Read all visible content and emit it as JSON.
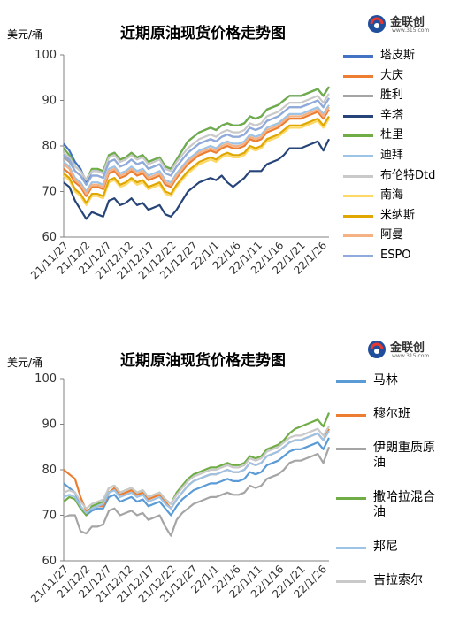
{
  "chart_data": [
    {
      "type": "line",
      "title": "近期原油现货价格走势图",
      "ylabel": "美元/桶",
      "ylim": [
        60,
        100
      ],
      "yticks": [
        60,
        70,
        80,
        90,
        100
      ],
      "x_tick_labels": [
        "21/11/27",
        "21/12/2",
        "21/12/7",
        "21/12/12",
        "21/12/17",
        "21/12/22",
        "21/12/27",
        "22/1/1",
        "22/1/6",
        "22/1/11",
        "22/1/16",
        "22/1/21",
        "22/1/26"
      ],
      "grid": false,
      "legend_position": "right",
      "logo": {
        "name": "金联创",
        "sub": "www.315.com"
      },
      "series": [
        {
          "name": "塔皮斯",
          "color": "#4472C4",
          "values": [
            80.5,
            79.0,
            76.5,
            75.0,
            72.0,
            74.5,
            74.5,
            74.0,
            78.0,
            78.5,
            77.0,
            77.5,
            78.5,
            77.5,
            78.0,
            76.5,
            77.0,
            77.5,
            75.5,
            75.0,
            77.0,
            79.0,
            81.0,
            82.0,
            83.0,
            83.5,
            84.0,
            83.5,
            84.5,
            85.0,
            84.5,
            84.5,
            85.0,
            86.5,
            86.0,
            86.5,
            88.0,
            88.5,
            89.0,
            90.0,
            91.0,
            91.0,
            91.0,
            91.5,
            92.0,
            92.5,
            91.0,
            93.0
          ]
        },
        {
          "name": "大庆",
          "color": "#ED7D31",
          "values": [
            75.0,
            74.0,
            72.0,
            71.0,
            69.0,
            71.0,
            71.0,
            70.5,
            74.0,
            74.5,
            73.0,
            73.5,
            74.5,
            73.5,
            74.0,
            72.5,
            73.0,
            73.5,
            71.5,
            71.0,
            73.0,
            74.5,
            76.0,
            77.0,
            78.0,
            78.5,
            79.0,
            78.5,
            79.5,
            80.0,
            79.5,
            79.5,
            80.0,
            81.5,
            81.0,
            81.5,
            83.0,
            83.5,
            84.0,
            85.0,
            86.0,
            86.0,
            86.0,
            86.5,
            87.0,
            87.5,
            86.0,
            88.0
          ]
        },
        {
          "name": "胜利",
          "color": "#A5A5A5",
          "values": [
            77.5,
            76.5,
            74.5,
            73.5,
            71.5,
            73.5,
            73.5,
            73.0,
            76.5,
            77.0,
            75.5,
            76.0,
            77.0,
            76.0,
            76.5,
            75.0,
            75.5,
            76.0,
            74.0,
            73.5,
            75.5,
            77.0,
            78.5,
            79.5,
            80.5,
            81.0,
            81.5,
            81.0,
            82.0,
            82.5,
            82.0,
            82.0,
            82.5,
            84.0,
            83.5,
            84.0,
            85.5,
            86.0,
            86.5,
            87.5,
            88.5,
            88.5,
            88.5,
            89.0,
            89.5,
            90.0,
            88.5,
            90.5
          ]
        },
        {
          "name": "辛塔",
          "color": "#264478",
          "values": [
            72.0,
            71.0,
            68.0,
            66.0,
            64.0,
            65.5,
            65.0,
            64.5,
            68.0,
            68.5,
            67.0,
            67.5,
            68.5,
            67.0,
            67.5,
            66.0,
            66.5,
            67.0,
            65.0,
            64.5,
            66.0,
            68.0,
            70.0,
            71.0,
            72.0,
            72.5,
            73.0,
            72.5,
            73.5,
            72.0,
            71.0,
            72.0,
            73.0,
            74.5,
            74.5,
            74.5,
            76.0,
            76.5,
            77.0,
            78.0,
            79.5,
            79.5,
            79.5,
            80.0,
            80.5,
            81.0,
            79.0,
            81.5
          ]
        },
        {
          "name": "杜里",
          "color": "#70AD47",
          "values": [
            79.5,
            78.0,
            75.5,
            74.5,
            72.5,
            75.0,
            75.0,
            74.5,
            78.0,
            78.5,
            77.0,
            77.5,
            78.5,
            77.5,
            78.0,
            76.5,
            77.0,
            77.5,
            75.5,
            75.0,
            77.0,
            79.0,
            81.0,
            82.0,
            83.0,
            83.5,
            84.0,
            83.5,
            84.5,
            85.0,
            84.5,
            84.5,
            85.0,
            86.5,
            86.0,
            86.5,
            88.0,
            88.5,
            89.0,
            90.0,
            91.0,
            91.0,
            91.0,
            91.5,
            92.0,
            92.5,
            91.0,
            93.0
          ]
        },
        {
          "name": "迪拜",
          "color": "#9DC3E6",
          "values": [
            76.5,
            75.5,
            73.0,
            72.0,
            70.0,
            72.0,
            72.0,
            71.5,
            75.0,
            75.5,
            74.0,
            74.5,
            75.5,
            74.5,
            75.0,
            73.5,
            74.0,
            74.5,
            72.5,
            72.0,
            74.0,
            75.5,
            77.0,
            78.0,
            79.0,
            79.5,
            80.0,
            79.5,
            80.5,
            81.0,
            80.5,
            80.5,
            81.0,
            82.5,
            82.0,
            82.5,
            84.0,
            84.5,
            85.0,
            86.0,
            87.0,
            87.0,
            87.0,
            87.5,
            88.0,
            88.5,
            87.0,
            89.0
          ]
        },
        {
          "name": "布伦特Dtd",
          "color": "#C9C9C9",
          "values": [
            78.5,
            77.5,
            75.5,
            74.5,
            72.5,
            74.5,
            74.5,
            74.0,
            77.5,
            78.0,
            76.5,
            77.0,
            78.0,
            77.0,
            77.5,
            76.0,
            76.5,
            77.0,
            75.0,
            74.5,
            76.5,
            78.0,
            79.5,
            80.5,
            81.5,
            82.0,
            82.5,
            82.0,
            83.0,
            83.5,
            83.0,
            83.0,
            83.5,
            85.0,
            84.5,
            85.0,
            86.5,
            87.0,
            87.5,
            88.5,
            89.5,
            89.5,
            89.5,
            90.0,
            90.5,
            91.0,
            89.5,
            91.5
          ]
        },
        {
          "name": "南海",
          "color": "#FFD966",
          "values": [
            73.5,
            72.5,
            70.0,
            69.0,
            67.0,
            69.0,
            69.0,
            68.5,
            72.0,
            72.5,
            71.0,
            71.5,
            72.5,
            71.5,
            72.0,
            70.5,
            71.0,
            71.5,
            69.5,
            69.0,
            71.0,
            72.5,
            74.0,
            75.0,
            76.0,
            76.5,
            77.0,
            76.5,
            77.5,
            78.0,
            77.5,
            77.5,
            78.0,
            79.5,
            79.0,
            79.5,
            81.0,
            81.5,
            82.0,
            83.0,
            84.0,
            84.0,
            84.0,
            84.5,
            85.0,
            85.5,
            84.0,
            86.0
          ]
        },
        {
          "name": "米纳斯",
          "color": "#DFA700",
          "values": [
            74.0,
            73.0,
            70.5,
            69.5,
            67.5,
            69.5,
            69.5,
            69.0,
            72.5,
            73.0,
            71.5,
            72.0,
            73.0,
            72.0,
            72.5,
            71.0,
            71.5,
            72.0,
            70.0,
            69.5,
            71.5,
            73.0,
            74.5,
            75.5,
            76.5,
            77.0,
            77.5,
            77.0,
            78.0,
            78.5,
            78.0,
            78.0,
            78.5,
            80.0,
            79.5,
            80.0,
            81.5,
            82.0,
            82.5,
            83.5,
            84.5,
            84.5,
            84.5,
            85.0,
            85.5,
            86.0,
            84.5,
            86.5
          ]
        },
        {
          "name": "阿曼",
          "color": "#F4B183",
          "values": [
            76.0,
            75.0,
            72.5,
            71.5,
            69.5,
            71.5,
            71.5,
            71.0,
            74.5,
            75.0,
            73.5,
            74.0,
            75.0,
            74.0,
            74.5,
            73.0,
            73.5,
            74.0,
            72.0,
            71.5,
            73.5,
            75.0,
            76.5,
            77.5,
            78.5,
            79.0,
            79.5,
            79.0,
            80.0,
            80.5,
            80.0,
            80.0,
            80.5,
            82.0,
            81.5,
            82.0,
            83.5,
            84.0,
            84.5,
            85.5,
            86.5,
            86.5,
            86.5,
            87.0,
            87.5,
            88.0,
            86.5,
            88.5
          ]
        },
        {
          "name": "ESPO",
          "color": "#8FAADC",
          "values": [
            78.0,
            77.0,
            74.5,
            73.5,
            71.5,
            73.5,
            73.5,
            73.0,
            76.5,
            77.0,
            75.5,
            76.0,
            77.0,
            76.0,
            76.5,
            75.0,
            75.5,
            76.0,
            74.0,
            73.5,
            75.5,
            77.0,
            78.5,
            79.5,
            80.5,
            81.0,
            81.5,
            81.0,
            82.0,
            82.5,
            82.0,
            82.0,
            82.5,
            84.0,
            83.5,
            84.0,
            85.5,
            86.0,
            86.5,
            87.5,
            88.5,
            88.5,
            88.5,
            89.0,
            89.5,
            90.0,
            88.5,
            90.5
          ]
        }
      ]
    },
    {
      "type": "line",
      "title": "近期原油现货价格走势图",
      "ylabel": "美元/桶",
      "ylim": [
        60,
        100
      ],
      "yticks": [
        60,
        70,
        80,
        90,
        100
      ],
      "x_tick_labels": [
        "21/11/27",
        "21/12/2",
        "21/12/7",
        "21/12/12",
        "21/12/17",
        "21/12/22",
        "21/12/27",
        "22/1/1",
        "22/1/6",
        "22/1/11",
        "22/1/16",
        "22/1/21",
        "22/1/26"
      ],
      "grid": false,
      "legend_position": "right",
      "logo": {
        "name": "金联创",
        "sub": "www.315.com"
      },
      "series": [
        {
          "name": "马林",
          "color": "#5B9BD5",
          "values": [
            77.0,
            76.0,
            75.0,
            72.0,
            70.0,
            71.0,
            71.5,
            71.5,
            74.0,
            74.5,
            73.0,
            73.5,
            74.0,
            73.0,
            73.5,
            72.0,
            72.5,
            73.0,
            71.5,
            70.0,
            72.0,
            73.5,
            74.5,
            75.5,
            76.0,
            76.5,
            77.0,
            77.0,
            77.5,
            78.0,
            77.5,
            77.5,
            78.0,
            79.5,
            79.0,
            79.5,
            81.0,
            81.5,
            82.0,
            83.0,
            84.0,
            84.5,
            84.5,
            85.0,
            85.5,
            86.0,
            84.5,
            87.0
          ]
        },
        {
          "name": "穆尔班",
          "color": "#ED7D31",
          "values": [
            80.0,
            79.0,
            78.0,
            74.0,
            71.0,
            71.5,
            72.0,
            72.0,
            75.0,
            76.0,
            74.5,
            75.0,
            75.5,
            74.5,
            75.0,
            73.5,
            74.0,
            74.5,
            73.0,
            71.5,
            73.5,
            75.0,
            76.5,
            77.5,
            78.0,
            78.5,
            79.0,
            79.0,
            79.5,
            80.0,
            79.5,
            79.5,
            80.0,
            81.5,
            81.0,
            81.5,
            83.0,
            83.5,
            84.0,
            85.0,
            86.0,
            86.5,
            86.5,
            87.0,
            87.5,
            88.0,
            86.5,
            89.0
          ]
        },
        {
          "name": "伊朗重质原油",
          "color": "#A5A5A5",
          "values": [
            69.5,
            70.0,
            70.0,
            66.5,
            66.0,
            67.5,
            67.5,
            68.0,
            71.0,
            71.5,
            70.0,
            70.5,
            71.0,
            70.0,
            70.5,
            69.0,
            69.5,
            70.0,
            67.5,
            65.5,
            69.0,
            70.5,
            71.5,
            72.5,
            73.0,
            73.5,
            74.0,
            74.0,
            74.5,
            75.0,
            74.5,
            74.5,
            75.0,
            76.5,
            76.0,
            76.5,
            78.0,
            78.5,
            79.0,
            80.0,
            81.5,
            82.0,
            82.0,
            82.5,
            83.0,
            83.5,
            81.5,
            85.0
          ]
        },
        {
          "name": "撒哈拉混合油",
          "color": "#70AD47",
          "values": [
            73.0,
            74.0,
            73.5,
            71.5,
            70.0,
            72.0,
            72.5,
            73.0,
            76.0,
            76.5,
            75.0,
            75.5,
            76.0,
            75.0,
            75.5,
            74.0,
            74.5,
            75.0,
            73.5,
            72.5,
            75.0,
            76.5,
            78.0,
            79.0,
            79.5,
            80.0,
            80.5,
            80.5,
            81.0,
            81.5,
            81.0,
            81.0,
            81.5,
            83.0,
            82.5,
            83.0,
            84.5,
            85.0,
            85.5,
            86.5,
            88.0,
            89.0,
            89.5,
            90.0,
            90.5,
            91.0,
            89.5,
            92.5
          ]
        },
        {
          "name": "邦尼",
          "color": "#9DC3E6",
          "values": [
            74.0,
            74.5,
            74.0,
            72.0,
            70.5,
            71.5,
            72.0,
            72.5,
            75.0,
            75.5,
            74.0,
            74.5,
            75.0,
            74.0,
            74.5,
            73.0,
            73.5,
            74.0,
            72.5,
            71.5,
            73.5,
            75.0,
            76.5,
            77.5,
            78.0,
            78.5,
            79.0,
            79.0,
            79.5,
            80.0,
            79.5,
            79.5,
            80.0,
            81.5,
            81.0,
            81.5,
            83.0,
            83.5,
            84.0,
            85.0,
            86.0,
            86.5,
            86.5,
            87.0,
            87.5,
            88.0,
            86.5,
            88.5
          ]
        },
        {
          "name": "吉拉索尔",
          "color": "#C9C9C9",
          "values": [
            75.0,
            75.5,
            75.0,
            73.0,
            71.5,
            72.5,
            73.0,
            73.5,
            76.0,
            76.5,
            75.0,
            75.5,
            76.0,
            75.0,
            75.5,
            74.0,
            74.5,
            75.0,
            73.5,
            72.5,
            74.5,
            76.0,
            77.5,
            78.5,
            79.0,
            79.5,
            80.0,
            80.0,
            80.5,
            81.0,
            80.5,
            80.5,
            81.0,
            82.5,
            82.0,
            82.5,
            84.0,
            84.5,
            85.0,
            86.0,
            87.0,
            87.5,
            87.5,
            88.0,
            88.5,
            89.0,
            87.5,
            89.5
          ]
        }
      ]
    }
  ]
}
